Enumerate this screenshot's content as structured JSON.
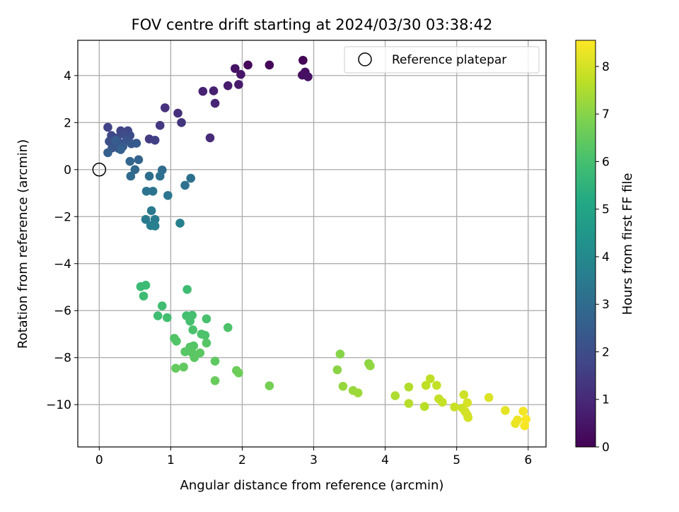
{
  "chart_data": {
    "type": "scatter",
    "title": "FOV centre drift starting at 2024/03/30 03:38:42",
    "xlabel": "Angular distance from reference (arcmin)",
    "ylabel": "Rotation from reference (arcmin)",
    "xlim": [
      -0.3,
      6.25
    ],
    "ylim": [
      -11.8,
      5.5
    ],
    "xticks": [
      0,
      1,
      2,
      3,
      4,
      5,
      6
    ],
    "xtick_labels": [
      "0",
      "1",
      "2",
      "3",
      "4",
      "5",
      "6"
    ],
    "yticks": [
      4,
      2,
      0,
      -2,
      -4,
      -6,
      -8,
      -10
    ],
    "ytick_labels": [
      "4",
      "2",
      "0",
      "−2",
      "−4",
      "−6",
      "−8",
      "−10"
    ],
    "grid": true,
    "legend": {
      "position": "top-right",
      "entries": [
        "Reference platepar"
      ]
    },
    "reference_point": {
      "name": "Reference platepar",
      "x": 0,
      "y": 0
    },
    "colorbar": {
      "label": "Hours from first FF file",
      "colormap": "viridis",
      "range": [
        0,
        8.55
      ],
      "ticks": [
        0,
        1,
        2,
        3,
        4,
        5,
        6,
        7,
        8
      ],
      "tick_labels": [
        "0",
        "1",
        "2",
        "3",
        "4",
        "5",
        "6",
        "7",
        "8"
      ]
    },
    "points": [
      [
        2.85,
        4.65,
        0.05
      ],
      [
        2.38,
        4.45,
        0.15
      ],
      [
        2.08,
        4.45,
        0.2
      ],
      [
        2.88,
        4.15,
        0.3
      ],
      [
        2.84,
        4.02,
        0.35
      ],
      [
        2.92,
        3.95,
        0.4
      ],
      [
        1.9,
        4.3,
        0.45
      ],
      [
        1.98,
        4.05,
        0.5
      ],
      [
        1.95,
        3.62,
        0.6
      ],
      [
        1.8,
        3.57,
        0.65
      ],
      [
        1.6,
        3.35,
        0.75
      ],
      [
        1.45,
        3.33,
        0.8
      ],
      [
        1.62,
        2.82,
        0.9
      ],
      [
        1.55,
        1.35,
        1.05
      ],
      [
        1.1,
        2.4,
        1.15
      ],
      [
        0.92,
        2.63,
        1.2
      ],
      [
        1.15,
        2.0,
        1.3
      ],
      [
        0.85,
        1.88,
        1.4
      ],
      [
        0.7,
        1.3,
        1.5
      ],
      [
        0.78,
        1.25,
        1.6
      ],
      [
        0.12,
        1.8,
        1.7
      ],
      [
        0.3,
        1.65,
        1.75
      ],
      [
        0.4,
        1.65,
        1.8
      ],
      [
        0.17,
        1.45,
        1.85
      ],
      [
        0.25,
        1.35,
        1.9
      ],
      [
        0.35,
        1.5,
        1.95
      ],
      [
        0.43,
        1.45,
        2.0
      ],
      [
        0.14,
        1.2,
        2.05
      ],
      [
        0.2,
        1.05,
        2.1
      ],
      [
        0.3,
        1.1,
        2.15
      ],
      [
        0.38,
        1.25,
        2.2
      ],
      [
        0.27,
        0.9,
        2.25
      ],
      [
        0.18,
        0.92,
        2.3
      ],
      [
        0.45,
        1.1,
        2.35
      ],
      [
        0.52,
        1.12,
        2.4
      ],
      [
        0.33,
        0.98,
        2.45
      ],
      [
        0.23,
        1.25,
        2.5
      ],
      [
        0.12,
        0.72,
        2.6
      ],
      [
        0.3,
        0.85,
        2.65
      ],
      [
        0.55,
        0.42,
        2.75
      ],
      [
        0.43,
        0.35,
        2.8
      ],
      [
        0.5,
        0.0,
        2.9
      ],
      [
        0.44,
        -0.28,
        2.95
      ],
      [
        0.88,
        -0.02,
        3.0
      ],
      [
        0.7,
        -0.28,
        3.05
      ],
      [
        0.85,
        -0.28,
        3.1
      ],
      [
        1.28,
        -0.37,
        3.15
      ],
      [
        1.2,
        -0.67,
        3.2
      ],
      [
        0.66,
        -0.92,
        3.25
      ],
      [
        0.75,
        -0.92,
        3.3
      ],
      [
        0.96,
        -1.1,
        3.35
      ],
      [
        0.73,
        -1.75,
        3.45
      ],
      [
        0.65,
        -2.12,
        3.5
      ],
      [
        0.78,
        -2.12,
        3.55
      ],
      [
        0.72,
        -2.38,
        3.6
      ],
      [
        0.78,
        -2.4,
        3.65
      ],
      [
        1.13,
        -2.28,
        3.7
      ],
      [
        0.58,
        -4.98,
        5.8
      ],
      [
        0.65,
        -4.92,
        5.82
      ],
      [
        0.62,
        -5.38,
        5.85
      ],
      [
        1.23,
        -5.1,
        5.87
      ],
      [
        0.88,
        -5.8,
        5.9
      ],
      [
        0.82,
        -6.22,
        5.92
      ],
      [
        0.95,
        -6.3,
        5.95
      ],
      [
        1.22,
        -6.22,
        5.97
      ],
      [
        1.3,
        -6.2,
        6.0
      ],
      [
        1.27,
        -6.45,
        6.02
      ],
      [
        1.5,
        -6.35,
        6.05
      ],
      [
        1.31,
        -6.82,
        6.07
      ],
      [
        1.43,
        -7.0,
        6.1
      ],
      [
        1.48,
        -7.05,
        6.12
      ],
      [
        1.8,
        -6.72,
        6.15
      ],
      [
        1.05,
        -7.18,
        6.17
      ],
      [
        1.08,
        -7.3,
        6.2
      ],
      [
        1.32,
        -7.5,
        6.22
      ],
      [
        1.27,
        -7.55,
        6.25
      ],
      [
        1.5,
        -7.38,
        6.27
      ],
      [
        1.2,
        -7.75,
        6.3
      ],
      [
        1.3,
        -7.8,
        6.32
      ],
      [
        1.41,
        -7.8,
        6.35
      ],
      [
        1.33,
        -8.0,
        6.37
      ],
      [
        1.62,
        -8.15,
        6.4
      ],
      [
        1.18,
        -8.4,
        6.45
      ],
      [
        1.07,
        -8.45,
        6.5
      ],
      [
        1.62,
        -8.98,
        6.55
      ],
      [
        1.92,
        -8.55,
        6.6
      ],
      [
        1.95,
        -8.65,
        6.65
      ],
      [
        2.38,
        -9.2,
        6.75
      ],
      [
        3.37,
        -7.85,
        7.0
      ],
      [
        3.33,
        -8.52,
        7.05
      ],
      [
        3.77,
        -8.25,
        7.1
      ],
      [
        3.79,
        -8.35,
        7.15
      ],
      [
        3.41,
        -9.22,
        7.2
      ],
      [
        3.55,
        -9.4,
        7.25
      ],
      [
        3.62,
        -9.5,
        7.3
      ],
      [
        4.14,
        -9.62,
        7.5
      ],
      [
        4.33,
        -9.25,
        7.55
      ],
      [
        4.33,
        -9.95,
        7.6
      ],
      [
        4.55,
        -10.08,
        7.65
      ],
      [
        4.57,
        -9.18,
        7.7
      ],
      [
        4.63,
        -8.9,
        7.72
      ],
      [
        4.72,
        -9.18,
        7.75
      ],
      [
        4.75,
        -9.75,
        7.8
      ],
      [
        4.8,
        -9.9,
        7.82
      ],
      [
        4.97,
        -10.1,
        7.85
      ],
      [
        5.08,
        -10.15,
        7.9
      ],
      [
        5.1,
        -9.58,
        7.92
      ],
      [
        5.12,
        -10.3,
        7.95
      ],
      [
        5.15,
        -10.45,
        7.97
      ],
      [
        5.16,
        -10.55,
        8.0
      ],
      [
        5.15,
        -9.92,
        8.02
      ],
      [
        5.45,
        -9.7,
        8.1
      ],
      [
        5.68,
        -10.25,
        8.2
      ],
      [
        5.82,
        -10.8,
        8.3
      ],
      [
        5.85,
        -10.65,
        8.35
      ],
      [
        5.93,
        -10.28,
        8.4
      ],
      [
        5.95,
        -10.9,
        8.45
      ],
      [
        5.97,
        -10.62,
        8.5
      ]
    ]
  }
}
